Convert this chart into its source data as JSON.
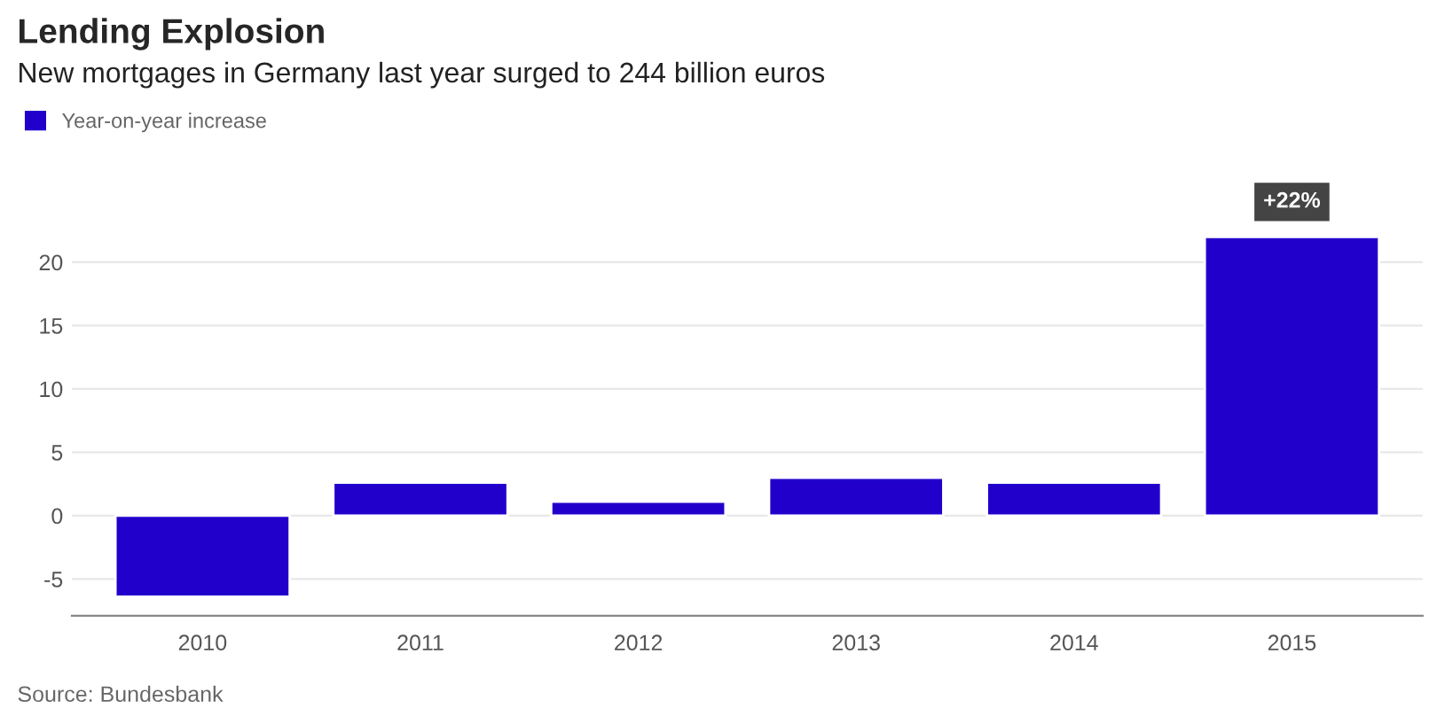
{
  "chart_data": {
    "type": "bar",
    "title": "Lending Explosion",
    "subtitle": "New mortgages in Germany last year surged to 244 billion euros",
    "categories": [
      "2010",
      "2011",
      "2012",
      "2013",
      "2014",
      "2015"
    ],
    "series": [
      {
        "name": "Year-on-year increase",
        "color": "#2200cc",
        "values": [
          -6.4,
          2.6,
          1.1,
          3.0,
          2.6,
          22
        ]
      }
    ],
    "ylim": [
      -7.9,
      26
    ],
    "yticks": [
      -5,
      0,
      5,
      10,
      15,
      20
    ],
    "grid": "y",
    "legend": "top left",
    "annotations": [
      {
        "text": "+22%",
        "x": "2015",
        "y": 22
      },
      "Source: Bundesbank"
    ]
  }
}
